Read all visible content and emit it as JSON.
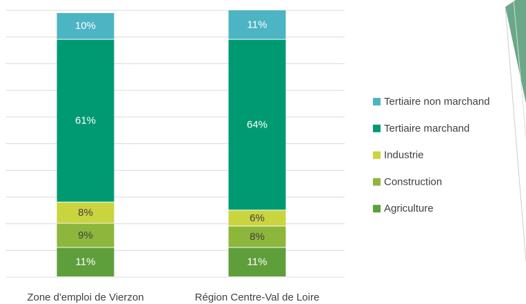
{
  "chart_data": {
    "type": "stacked_bar",
    "categories": [
      "Zone d'emploi de Vierzon",
      "Région Centre-Val de Loire"
    ],
    "series": [
      {
        "name": "Agriculture",
        "color": "#5e9f3c",
        "values": [
          11,
          11
        ],
        "value_labels": [
          "11%",
          "11%"
        ]
      },
      {
        "name": "Construction",
        "color": "#8db63c",
        "values": [
          9,
          8
        ],
        "value_labels": [
          "9%",
          "8%"
        ]
      },
      {
        "name": "Industrie",
        "color": "#cad43f",
        "values": [
          8,
          6
        ],
        "value_labels": [
          "8%",
          "6%"
        ]
      },
      {
        "name": "Tertiaire marchand",
        "color": "#009a72",
        "values": [
          61,
          64
        ],
        "value_labels": [
          "61%",
          "64%"
        ]
      },
      {
        "name": "Tertiaire non marchand",
        "color": "#4db4c4",
        "values": [
          10,
          11
        ],
        "value_labels": [
          "10%",
          "11%"
        ]
      }
    ],
    "ylim": [
      0,
      100
    ],
    "yticks": [
      0,
      10,
      20,
      30,
      40,
      50,
      60,
      70,
      80,
      90,
      100
    ],
    "grid": true,
    "legend": "right"
  }
}
